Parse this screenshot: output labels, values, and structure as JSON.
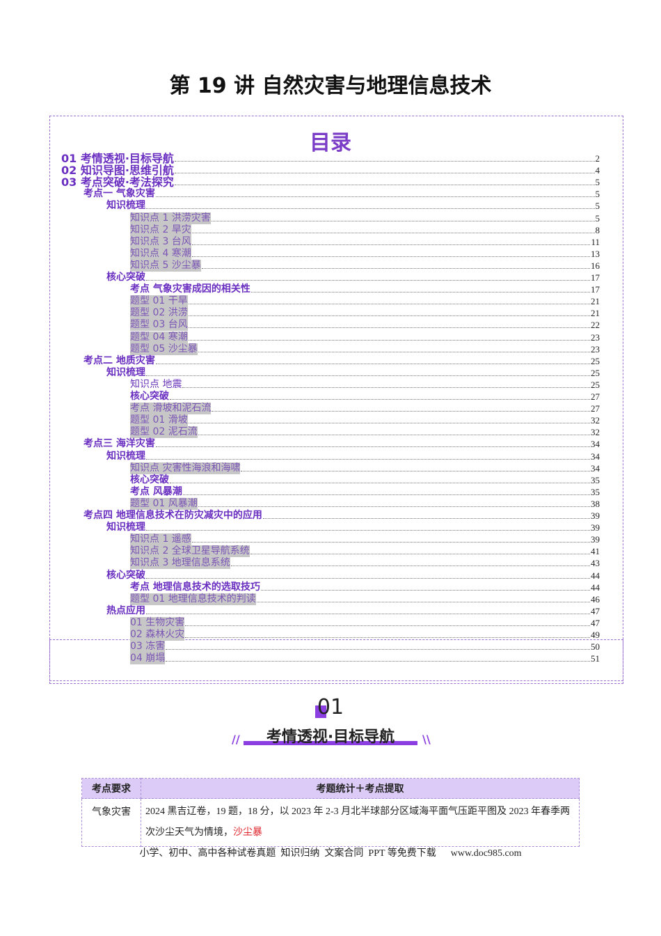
{
  "title": "第 19 讲 自然灾害与地理信息技术",
  "toc": {
    "heading": "目录",
    "entries": [
      {
        "text": "01 考情透视·目标导航",
        "page": "2"
      },
      {
        "text": "02 知识导图·思维引航",
        "page": "4"
      },
      {
        "text": "03 考点突破·考法探究",
        "page": "5"
      },
      {
        "text": "考点一 气象灾害",
        "page": "5"
      },
      {
        "text": "知识梳理",
        "page": "5"
      },
      {
        "text": "知识点 1 洪涝灾害",
        "page": "5"
      },
      {
        "text": "知识点 2 旱灾",
        "page": "8"
      },
      {
        "text": "知识点 3 台风",
        "page": "11"
      },
      {
        "text": "知识点 4 寒潮",
        "page": "13"
      },
      {
        "text": "知识点 5 沙尘暴",
        "page": "16"
      },
      {
        "text": "核心突破",
        "page": "17"
      },
      {
        "text": "考点 气象灾害成因的相关性",
        "page": "17"
      },
      {
        "text": "题型 01 干旱",
        "page": "21"
      },
      {
        "text": "题型 02 洪涝",
        "page": "21"
      },
      {
        "text": "题型 03 台风",
        "page": "22"
      },
      {
        "text": "题型 04 寒潮",
        "page": "23"
      },
      {
        "text": "题型 05 沙尘暴",
        "page": "23"
      },
      {
        "text": "考点二 地质灾害",
        "page": "25"
      },
      {
        "text": "知识梳理",
        "page": "25"
      },
      {
        "text": "知识点 地震",
        "page": "25"
      },
      {
        "text": "核心突破",
        "page": "27"
      },
      {
        "text": "考点 滑坡和泥石流",
        "page": "27"
      },
      {
        "text": "题型 01 滑坡",
        "page": "32"
      },
      {
        "text": "题型 02 泥石流",
        "page": "32"
      },
      {
        "text": "考点三 海洋灾害",
        "page": "34"
      },
      {
        "text": "知识梳理",
        "page": "34"
      },
      {
        "text": "知识点 灾害性海浪和海啸",
        "page": "34"
      },
      {
        "text": "核心突破",
        "page": "35"
      },
      {
        "text": "考点 风暴潮",
        "page": "35"
      },
      {
        "text": "题型 01 风暴潮",
        "page": "38"
      },
      {
        "text": "考点四 地理信息技术在防灾减灾中的应用",
        "page": "39"
      },
      {
        "text": "知识梳理",
        "page": "39"
      },
      {
        "text": "知识点 1 遥感",
        "page": "39"
      },
      {
        "text": "知识点 2 全球卫星导航系统",
        "page": "41"
      },
      {
        "text": "知识点 3 地理信息系统",
        "page": "43"
      },
      {
        "text": "核心突破",
        "page": "44"
      },
      {
        "text": "考点 地理信息技术的选取技巧",
        "page": "44"
      },
      {
        "text": "题型 01 地理信息技术的判读",
        "page": "46"
      },
      {
        "text": "热点应用",
        "page": "47"
      },
      {
        "text": "01 生物灾害",
        "page": "47"
      },
      {
        "text": "02 森林火灾",
        "page": "49"
      },
      {
        "text": "03 冻害",
        "page": "50"
      },
      {
        "text": "04 崩塌",
        "page": "51"
      }
    ]
  },
  "section": {
    "number": "01",
    "title": "考情透视·目标导航"
  },
  "table": {
    "header": [
      "考点要求",
      "考题统计＋考点提取"
    ],
    "rows": [
      [
        "气象灾害",
        {
          "text": "2024 黑吉辽卷，19 题，18 分，以 2023 年 2-3 月北半球部分区域海平面气压距平图及 2023 年春季两次沙尘天气为情境，",
          "highlight": "沙尘暴"
        }
      ]
    ]
  },
  "footer": "小学、初中、高中各种试卷真题  知识归纳  文案合同  PPT 等免费下载      www.doc985.com"
}
